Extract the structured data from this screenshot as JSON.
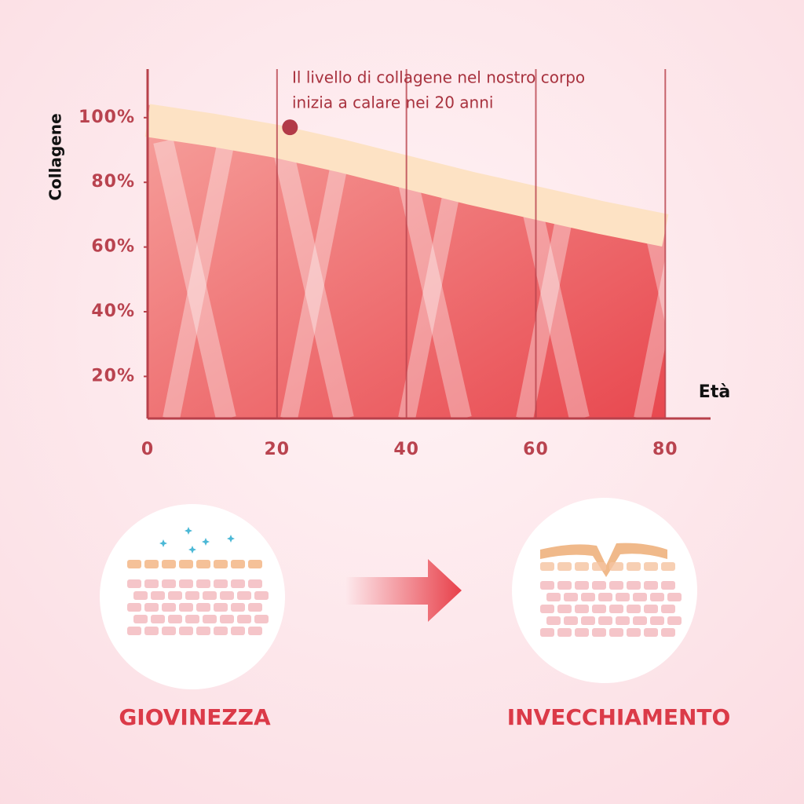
{
  "chart_data": {
    "type": "area",
    "y_label": "Collagene",
    "x_label": "Età",
    "annotation": {
      "lines": [
        "Il livello di collagene nel nostro corpo",
        "inizia a calare nei 20 anni"
      ],
      "x": 22,
      "y": 97
    },
    "x": [
      0,
      10,
      20,
      30,
      40,
      50,
      60,
      70,
      80
    ],
    "series": [
      {
        "name": "Collagene",
        "color": "#ee6a6a",
        "values": [
          104,
          101,
          97.5,
          93,
          88,
          83,
          78.5,
          74,
          70
        ]
      }
    ],
    "xlim": [
      0,
      87
    ],
    "xticks": [
      0,
      20,
      40,
      60,
      80
    ],
    "ylim": [
      7,
      115
    ],
    "yticks": [
      {
        "value": 20,
        "label": "20%"
      },
      {
        "value": 40,
        "label": "40%"
      },
      {
        "value": 60,
        "label": "60%"
      },
      {
        "value": 80,
        "label": "80%"
      },
      {
        "value": 100,
        "label": "100%"
      }
    ]
  },
  "illustrations": {
    "left_label": "GIOVINEZZA",
    "right_label": "INVECCHIAMENTO"
  }
}
